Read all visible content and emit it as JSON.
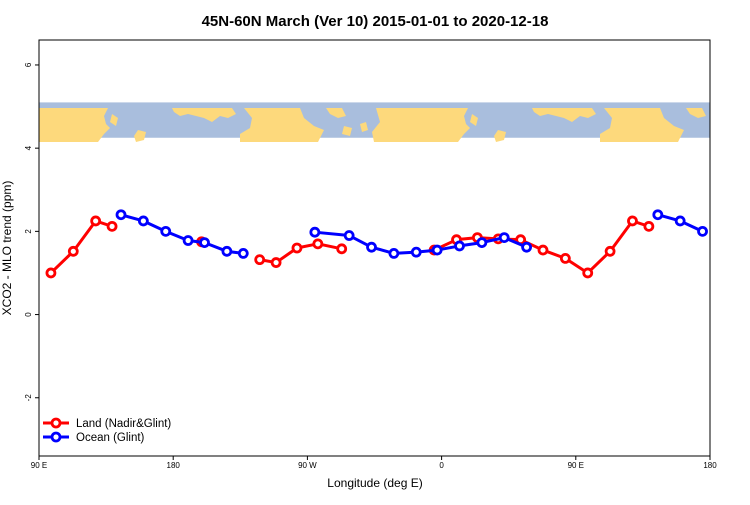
{
  "chart_data": {
    "type": "line",
    "title": "45N-60N March (Ver 10)   2015-01-01 to 2020-12-18",
    "xlabel": "Longitude (deg E)",
    "ylabel": "XCO2 - MLO trend (ppm)",
    "x_ticks": [
      {
        "value": 90,
        "label": "90 E"
      },
      {
        "value": 180,
        "label": "180"
      },
      {
        "value": 270,
        "label": "90 W"
      },
      {
        "value": 360,
        "label": "0"
      },
      {
        "value": 450,
        "label": "90 E"
      },
      {
        "value": 540,
        "label": "180"
      }
    ],
    "y_ticks": [
      {
        "value": -2,
        "label": "-2"
      },
      {
        "value": 0,
        "label": "0"
      },
      {
        "value": 2,
        "label": "2"
      },
      {
        "value": 4,
        "label": "4"
      },
      {
        "value": 6,
        "label": "6"
      }
    ],
    "xlim": [
      90,
      540
    ],
    "ylim": [
      -3.4,
      6.6
    ],
    "map_band": {
      "y_range": [
        4.25,
        5.1
      ],
      "ocean_color": "#a9bedd",
      "land_color": "#fdd97c"
    },
    "series": [
      {
        "name": "Land (Nadir&Glint)",
        "color": "#ff0000",
        "segments": [
          [
            [
              98,
              1.0
            ],
            [
              113,
              1.52
            ],
            [
              128,
              2.25
            ],
            [
              139,
              2.12
            ]
          ],
          [
            [
              199,
              1.75
            ]
          ],
          [
            [
              238,
              1.32
            ],
            [
              249,
              1.25
            ],
            [
              263,
              1.6
            ],
            [
              277,
              1.7
            ],
            [
              293,
              1.58
            ]
          ],
          [
            [
              355,
              1.55
            ],
            [
              370,
              1.8
            ],
            [
              384,
              1.85
            ],
            [
              398,
              1.82
            ],
            [
              413,
              1.8
            ],
            [
              428,
              1.55
            ],
            [
              443,
              1.35
            ],
            [
              458,
              1.0
            ],
            [
              473,
              1.52
            ],
            [
              488,
              2.25
            ],
            [
              499,
              2.12
            ]
          ]
        ]
      },
      {
        "name": "Ocean (Glint)",
        "color": "#0000ff",
        "segments": [
          [
            [
              145,
              2.4
            ],
            [
              160,
              2.25
            ],
            [
              175,
              2.0
            ],
            [
              190,
              1.78
            ],
            [
              201,
              1.73
            ],
            [
              216,
              1.52
            ],
            [
              227,
              1.47
            ]
          ],
          [
            [
              275,
              1.98
            ],
            [
              298,
              1.9
            ],
            [
              313,
              1.62
            ],
            [
              328,
              1.47
            ],
            [
              343,
              1.5
            ],
            [
              357,
              1.55
            ],
            [
              372,
              1.65
            ],
            [
              387,
              1.73
            ],
            [
              402,
              1.85
            ],
            [
              417,
              1.62
            ]
          ],
          [
            [
              505,
              2.4
            ],
            [
              520,
              2.25
            ],
            [
              535,
              2.0
            ]
          ]
        ]
      }
    ],
    "legend": {
      "position": "bottom-left"
    }
  }
}
